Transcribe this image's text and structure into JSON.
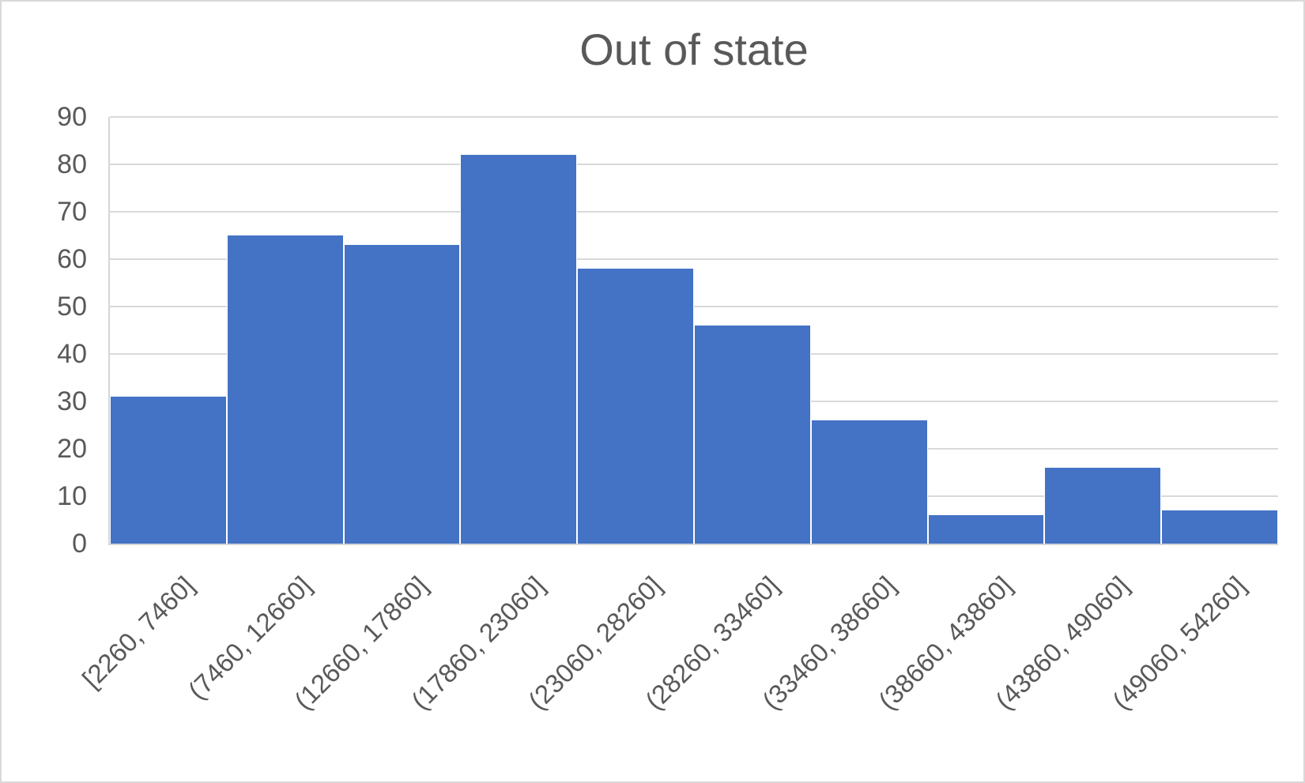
{
  "chart_data": {
    "type": "bar",
    "variant": "histogram",
    "title": "Out of state",
    "categories": [
      "[2260, 7460]",
      "(7460, 12660]",
      "(12660, 17860]",
      "(17860, 23060]",
      "(23060, 28260]",
      "(28260, 33460]",
      "(33460, 38660]",
      "(38660, 43860]",
      "(43860, 49060]",
      "(49060, 54260]"
    ],
    "values": [
      31,
      65,
      63,
      82,
      58,
      46,
      26,
      6,
      16,
      7
    ],
    "xlabel": "",
    "ylabel": "",
    "ylim": [
      0,
      90
    ],
    "ytick_step": 10,
    "ytick_labels": [
      "0",
      "10",
      "20",
      "30",
      "40",
      "50",
      "60",
      "70",
      "80",
      "90"
    ],
    "xtick_rotation_deg": 45,
    "grid": "horizontal",
    "legend": "none",
    "bar_color": "#4472C4",
    "gridline_color": "#D9D9D9",
    "axis_color": "#D6D6D6",
    "text_color": "#595959",
    "background_color": "#FFFFFF"
  }
}
